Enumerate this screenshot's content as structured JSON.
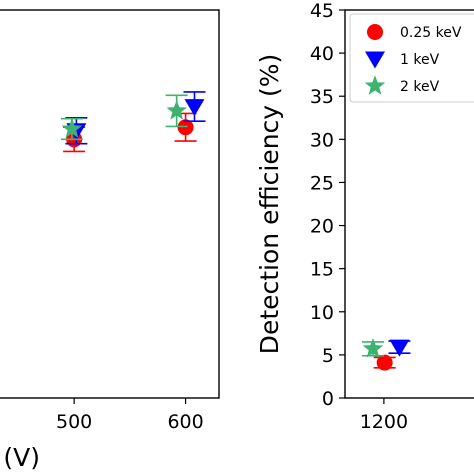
{
  "chart_data": [
    {
      "type": "scatter",
      "panel": "left",
      "xlabel": "e (V)",
      "ylabel": "",
      "xlim": [
        420,
        630
      ],
      "ylim": [
        0,
        45
      ],
      "x_ticks": [
        500,
        600
      ],
      "x_tick_labels": [
        "500",
        "600"
      ],
      "grid": false,
      "series": [
        {
          "name": "0.25 keV",
          "color": "#ff0000",
          "marker": "circle",
          "points": [
            {
              "x": 500,
              "y": 30.0,
              "err": 1.4
            },
            {
              "x": 600,
              "y": 31.4,
              "err": 1.6
            }
          ]
        },
        {
          "name": "1 keV",
          "color": "#0000ff",
          "marker": "triangle-down",
          "points": [
            {
              "x": 502,
              "y": 31.0,
              "err": 1.5
            },
            {
              "x": 608,
              "y": 33.8,
              "err": 1.7
            }
          ]
        },
        {
          "name": "2 keV",
          "color": "#3cb371",
          "marker": "star",
          "points": [
            {
              "x": 498,
              "y": 31.2,
              "err": 1.2
            },
            {
              "x": 592,
              "y": 33.3,
              "err": 1.8
            }
          ]
        }
      ]
    },
    {
      "type": "scatter",
      "panel": "right",
      "xlabel": "",
      "ylabel": "Detection efficiency (%)",
      "xlim": [
        1150,
        1330
      ],
      "ylim": [
        0,
        45
      ],
      "y_ticks": [
        0,
        5,
        10,
        15,
        20,
        25,
        30,
        35,
        40,
        45
      ],
      "y_tick_labels": [
        "0",
        "5",
        "10",
        "15",
        "20",
        "25",
        "30",
        "35",
        "40",
        "45"
      ],
      "x_ticks": [
        1200
      ],
      "x_tick_labels": [
        "1200"
      ],
      "grid": false,
      "legend": {
        "placement": "top-right",
        "entries": [
          {
            "label": "0.25 keV",
            "color": "#ff0000",
            "marker": "circle"
          },
          {
            "label": "1 keV",
            "color": "#0000ff",
            "marker": "triangle-down"
          },
          {
            "label": "2 keV",
            "color": "#3cb371",
            "marker": "star"
          }
        ]
      },
      "series": [
        {
          "name": "0.25 keV",
          "color": "#ff0000",
          "marker": "circle",
          "points": [
            {
              "x": 1201,
              "y": 4.1,
              "err": 0.6
            }
          ]
        },
        {
          "name": "1 keV",
          "color": "#0000ff",
          "marker": "triangle-down",
          "points": [
            {
              "x": 1220,
              "y": 5.9,
              "err": 0.7
            }
          ]
        },
        {
          "name": "2 keV",
          "color": "#3cb371",
          "marker": "star",
          "points": [
            {
              "x": 1186,
              "y": 5.7,
              "err": 0.8
            }
          ]
        }
      ]
    }
  ]
}
